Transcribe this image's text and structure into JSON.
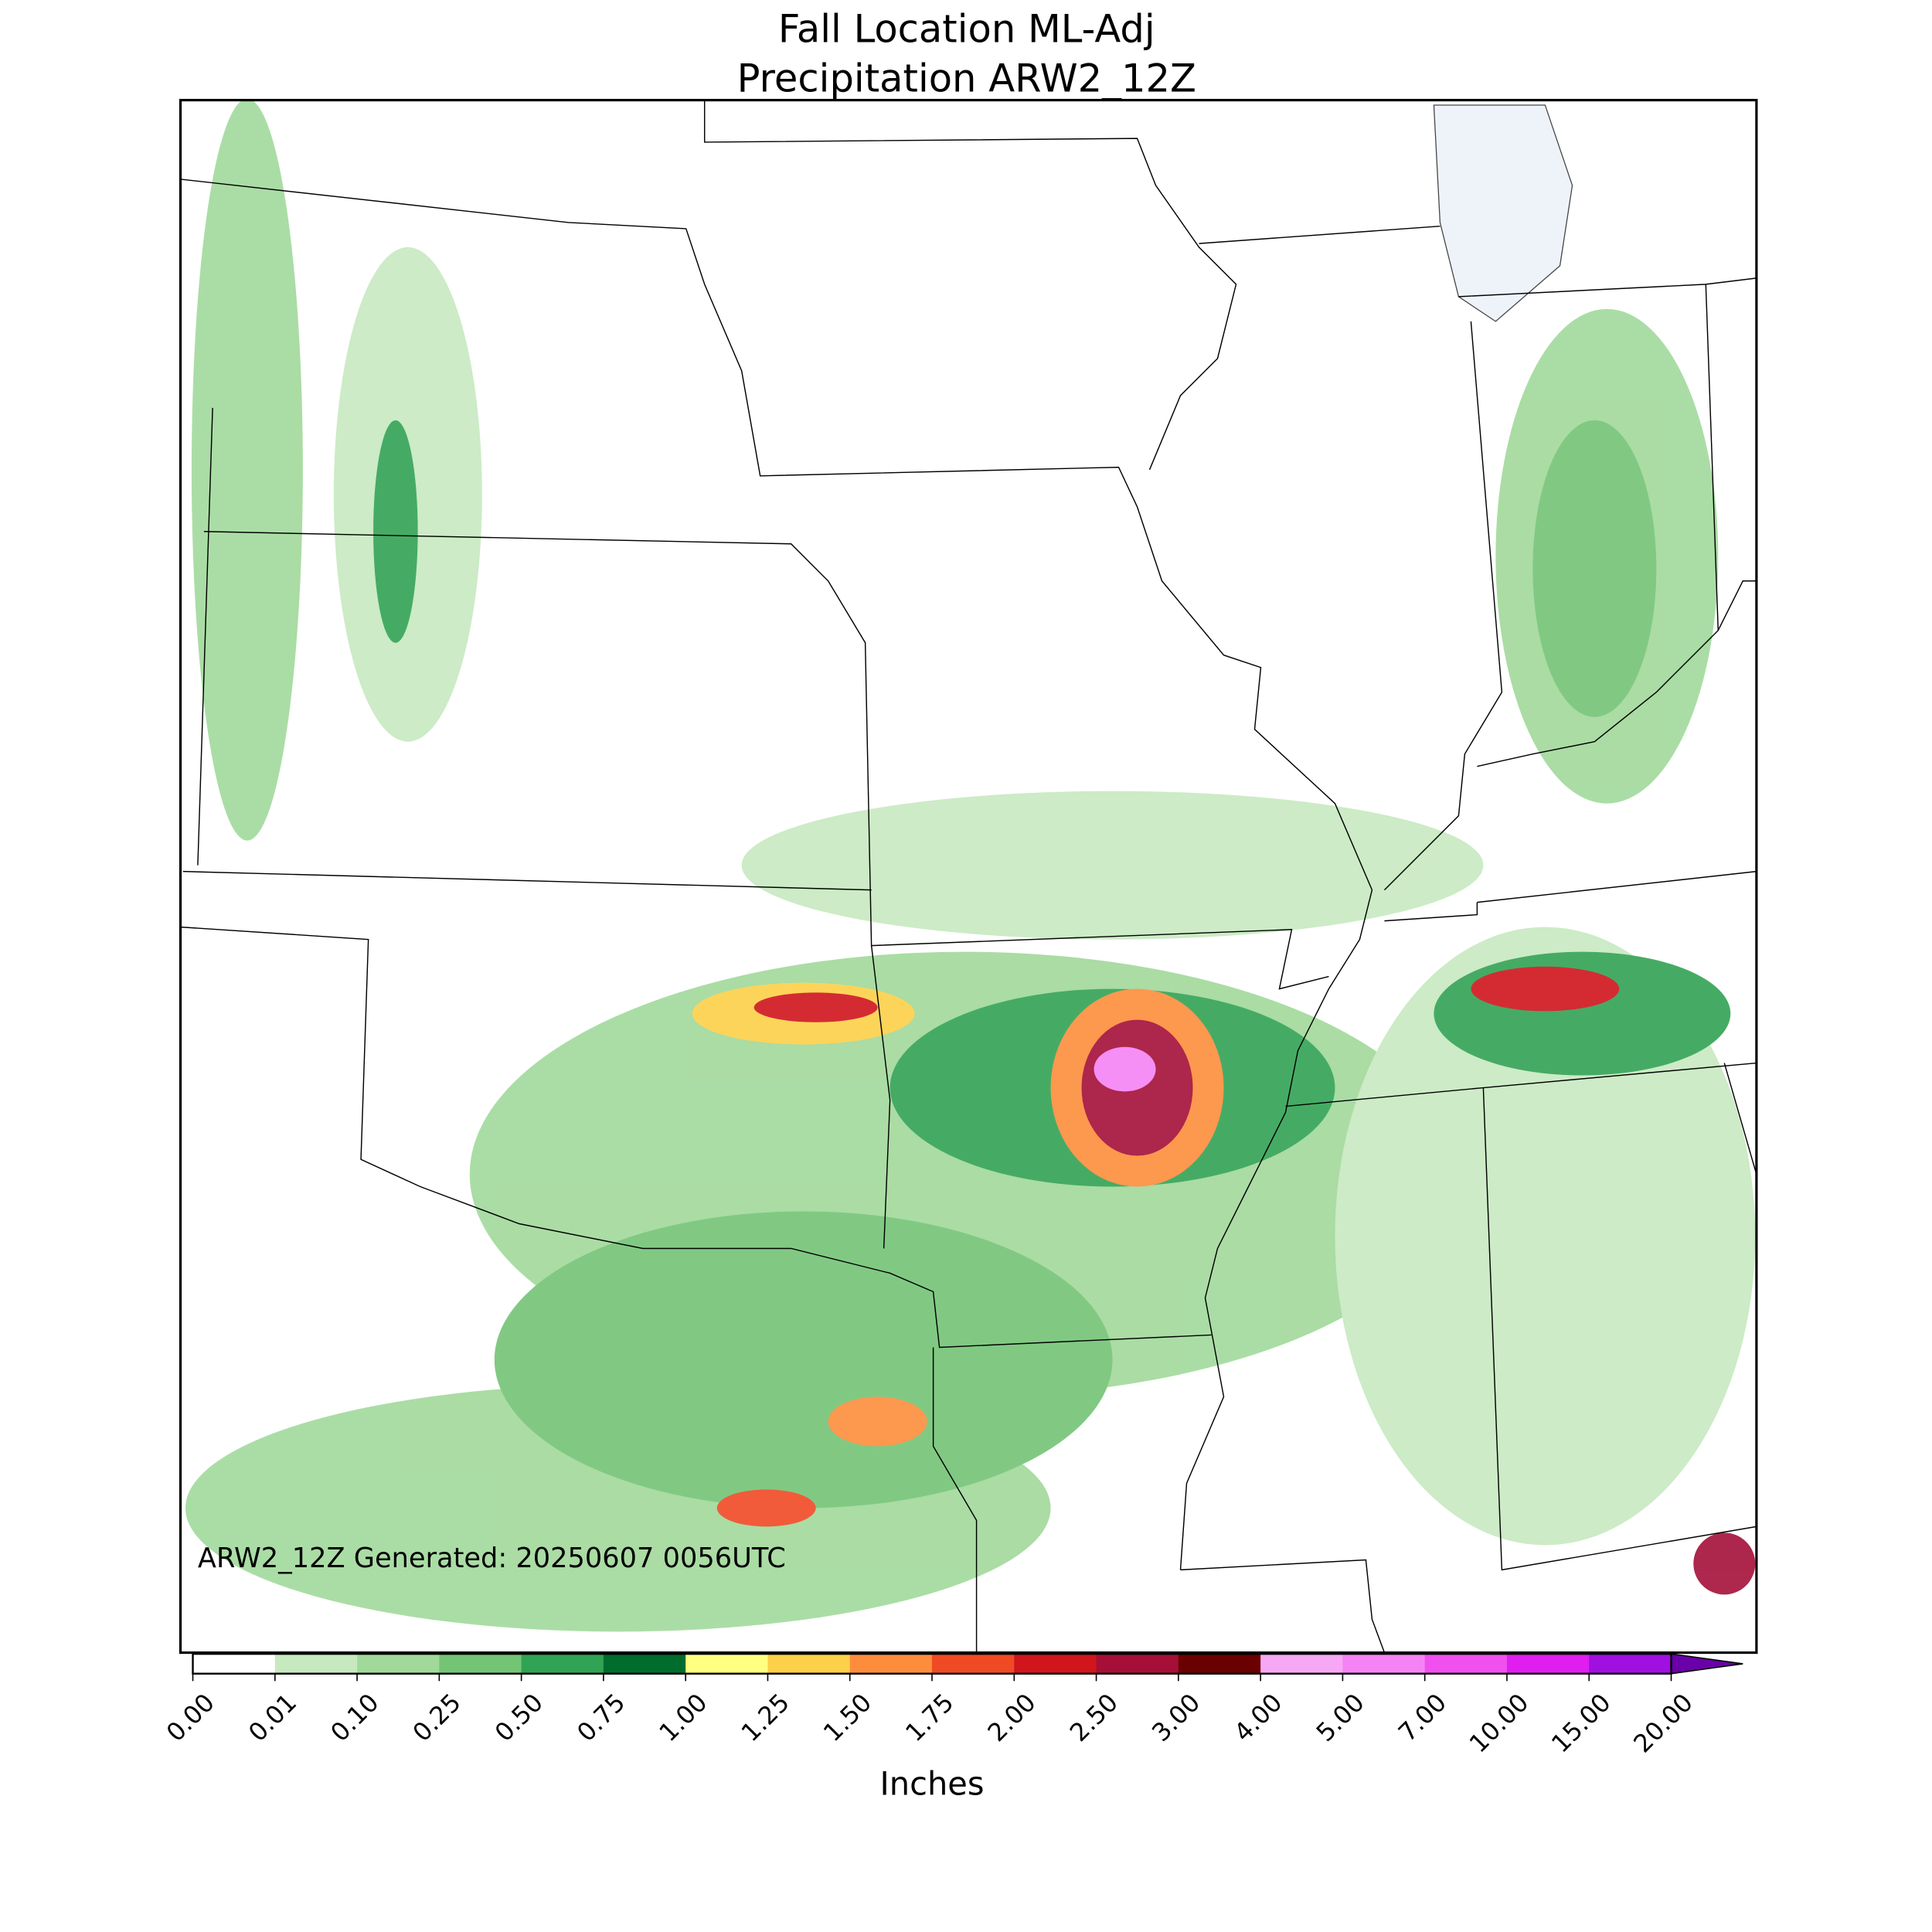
{
  "title": [
    "Fall Location ML-Adj",
    "Precipitation ARW2_12Z"
  ],
  "annotation": "ARW2_12Z Generated: 20250607 0056UTC",
  "colorbar": {
    "label": "Inches",
    "extend": "max",
    "extend_color": "#6a00a8",
    "ticks": [
      {
        "value": 0,
        "label": "0.00"
      },
      {
        "value": 0.01,
        "label": "0.01"
      },
      {
        "value": 0.1,
        "label": "0.10"
      },
      {
        "value": 0.25,
        "label": "0.25"
      },
      {
        "value": 0.5,
        "label": "0.50"
      },
      {
        "value": 0.75,
        "label": "0.75"
      },
      {
        "value": 1,
        "label": "1.00"
      },
      {
        "value": 1.25,
        "label": "1.25"
      },
      {
        "value": 1.5,
        "label": "1.50"
      },
      {
        "value": 1.75,
        "label": "1.75"
      },
      {
        "value": 2,
        "label": "2.00"
      },
      {
        "value": 2.5,
        "label": "2.50"
      },
      {
        "value": 3,
        "label": "3.00"
      },
      {
        "value": 4,
        "label": "4.00"
      },
      {
        "value": 5,
        "label": "5.00"
      },
      {
        "value": 7,
        "label": "7.00"
      },
      {
        "value": 10,
        "label": "10.00"
      },
      {
        "value": 15,
        "label": "15.00"
      },
      {
        "value": 20,
        "label": "20.00"
      }
    ],
    "colors": [
      "#ffffff",
      "#c7e9c0",
      "#a1d99b",
      "#74c476",
      "#31a354",
      "#006d2c",
      "#ffff80",
      "#fdd049",
      "#fd8d3c",
      "#f04a25",
      "#d0151d",
      "#a50f38",
      "#6b0000",
      "#f7a8f5",
      "#f683f5",
      "#f050f0",
      "#e01ef0",
      "#a010e0"
    ]
  }
}
